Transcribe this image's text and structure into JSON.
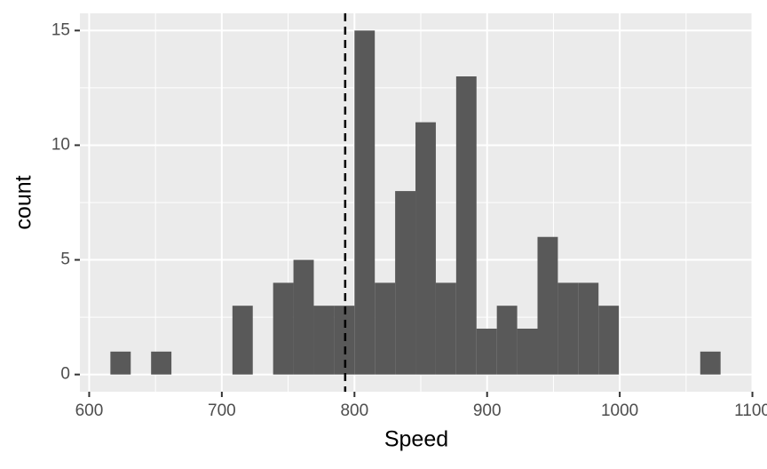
{
  "chart_data": {
    "type": "histogram",
    "x_label": "Speed",
    "y_label": "count",
    "bins": [
      616,
      631.33,
      646.67,
      662,
      677.33,
      692.67,
      708,
      723.33,
      738.67,
      754,
      769.33,
      784.67,
      800,
      815.33,
      830.67,
      846,
      861.33,
      876.67,
      892,
      907.33,
      922.67,
      938,
      953.33,
      968.67,
      984,
      999.33,
      1014.67,
      1030,
      1045.33,
      1060.67,
      1076
    ],
    "values": [
      1,
      0,
      1,
      0,
      0,
      0,
      3,
      0,
      4,
      5,
      3,
      3,
      15,
      4,
      8,
      11,
      4,
      13,
      2,
      3,
      2,
      6,
      4,
      4,
      3,
      0,
      0,
      0,
      0,
      1
    ],
    "color": "#595959",
    "vline": 793,
    "xlim": [
      593,
      1100.3
    ],
    "xticks": [
      600,
      700,
      800,
      900,
      1000,
      1100
    ],
    "ylim": [
      -0.75,
      15.75
    ],
    "yticks": [
      0,
      5,
      10,
      15
    ],
    "grid": true
  }
}
